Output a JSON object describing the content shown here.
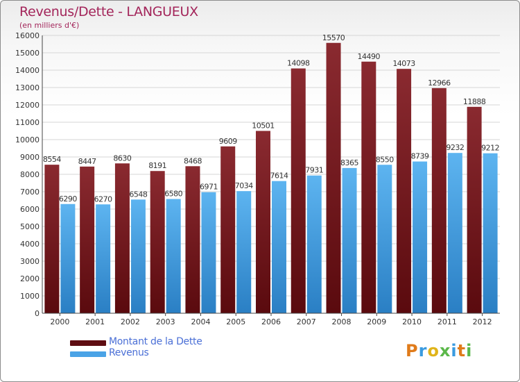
{
  "title": "Revenus/Dette - LANGUEUX",
  "subtitle": "(en milliers d'€)",
  "logo_text": "Proxiti",
  "colors": {
    "debt": "#7a1c22",
    "revenue": "#4aa3e6",
    "title": "#a3255a",
    "legend_text": "#4a6fd6"
  },
  "legend": [
    {
      "label": "Montant de la Dette",
      "color": "#5e0d12"
    },
    {
      "label": "Revenus",
      "color": "#4aa3e6"
    }
  ],
  "chart_data": {
    "type": "bar",
    "categories": [
      "2000",
      "2001",
      "2002",
      "2003",
      "2004",
      "2005",
      "2006",
      "2007",
      "2008",
      "2009",
      "2010",
      "2011",
      "2012"
    ],
    "series": [
      {
        "name": "Montant de la Dette",
        "values": [
          8554,
          8447,
          8630,
          8191,
          8468,
          9609,
          10501,
          14098,
          15570,
          14490,
          14073,
          12966,
          11888
        ]
      },
      {
        "name": "Revenus",
        "values": [
          6290,
          6270,
          6548,
          6580,
          6971,
          7034,
          7614,
          7931,
          8365,
          8550,
          8739,
          9232,
          9212
        ]
      }
    ],
    "ylim": [
      0,
      16000
    ],
    "yticks": [
      0,
      1000,
      2000,
      3000,
      4000,
      5000,
      6000,
      7000,
      8000,
      9000,
      10000,
      11000,
      12000,
      13000,
      14000,
      15000,
      16000
    ],
    "grid": true,
    "legend_position": "bottom-left"
  }
}
